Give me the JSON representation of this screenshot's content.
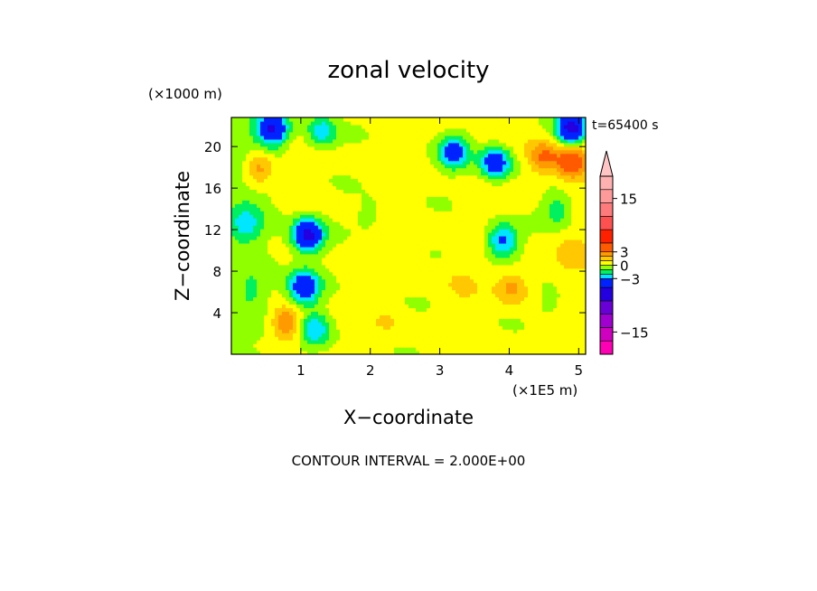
{
  "chart_data": {
    "type": "heatmap",
    "title": "zonal velocity",
    "xlabel": "X−coordinate",
    "ylabel": "Z−coordinate",
    "x_unit": "(×1E5 m)",
    "y_unit": "(×1000 m)",
    "time_label": "t=65400 s",
    "footer": "CONTOUR INTERVAL = 2.000E+00",
    "xlim": [
      0,
      5.1
    ],
    "ylim": [
      0,
      22.8
    ],
    "x_ticks": [
      1,
      2,
      3,
      4,
      5
    ],
    "y_ticks": [
      4,
      8,
      12,
      16,
      20
    ],
    "colorbar": {
      "labels": [
        {
          "value": 15,
          "text": "15"
        },
        {
          "value": 3,
          "text": "3"
        },
        {
          "value": 0,
          "text": "0"
        },
        {
          "value": -3,
          "text": "−3"
        },
        {
          "value": -15,
          "text": "−15"
        }
      ],
      "bins": [
        {
          "from": -20,
          "to": -17,
          "color": "#ff00b4"
        },
        {
          "from": -17,
          "to": -14,
          "color": "#d000c0"
        },
        {
          "from": -14,
          "to": -11,
          "color": "#a000d0"
        },
        {
          "from": -11,
          "to": -8,
          "color": "#6a00d8"
        },
        {
          "from": -8,
          "to": -5,
          "color": "#2400e0"
        },
        {
          "from": -5,
          "to": -3,
          "color": "#0022ff"
        },
        {
          "from": -3,
          "to": -2,
          "color": "#00e6ff"
        },
        {
          "from": -2,
          "to": -1,
          "color": "#00f060"
        },
        {
          "from": -1,
          "to": 0,
          "color": "#90ff00"
        },
        {
          "from": 0,
          "to": 1,
          "color": "#ffff00"
        },
        {
          "from": 1,
          "to": 2,
          "color": "#ffc800"
        },
        {
          "from": 2,
          "to": 3,
          "color": "#ff9a00"
        },
        {
          "from": 3,
          "to": 5,
          "color": "#ff5a00"
        },
        {
          "from": 5,
          "to": 8,
          "color": "#ff2000"
        },
        {
          "from": 8,
          "to": 11,
          "color": "#ff5050"
        },
        {
          "from": 11,
          "to": 14,
          "color": "#ff7a7a"
        },
        {
          "from": 14,
          "to": 17,
          "color": "#ff9a9a"
        },
        {
          "from": 17,
          "to": 20,
          "color": "#ffb0b0"
        }
      ],
      "extend_top": true
    },
    "field_features": [
      {
        "x": 0.6,
        "z": 21.7,
        "value": -5
      },
      {
        "x": 1.3,
        "z": 21.5,
        "value": -3
      },
      {
        "x": 4.9,
        "z": 21.8,
        "value": -6
      },
      {
        "x": 3.2,
        "z": 19.5,
        "value": -4
      },
      {
        "x": 3.8,
        "z": 18.5,
        "value": -5
      },
      {
        "x": 4.5,
        "z": 19.0,
        "value": 3
      },
      {
        "x": 4.9,
        "z": 18.5,
        "value": 4
      },
      {
        "x": 0.4,
        "z": 18.0,
        "value": 3
      },
      {
        "x": 1.1,
        "z": 11.5,
        "value": -6
      },
      {
        "x": 1.05,
        "z": 6.5,
        "value": -5
      },
      {
        "x": 1.2,
        "z": 2.5,
        "value": -3
      },
      {
        "x": 0.8,
        "z": 3.0,
        "value": 3
      },
      {
        "x": 3.9,
        "z": 11.0,
        "value": -4
      },
      {
        "x": 4.05,
        "z": 6.5,
        "value": 2
      },
      {
        "x": 4.7,
        "z": 14.0,
        "value": -2
      },
      {
        "x": 0.2,
        "z": 12.5,
        "value": -2
      },
      {
        "x": 0.3,
        "z": 6.0,
        "value": -1
      },
      {
        "x": 2.6,
        "z": 9.0,
        "value": 0.5
      },
      {
        "x": 3.3,
        "z": 7.0,
        "value": 0.5
      },
      {
        "x": 2.0,
        "z": 13.5,
        "value": -1
      },
      {
        "x": 4.6,
        "z": 5.0,
        "value": -1
      },
      {
        "x": 2.3,
        "z": 3.0,
        "value": 0.5
      },
      {
        "x": 4.9,
        "z": 10.0,
        "value": 1
      }
    ]
  }
}
